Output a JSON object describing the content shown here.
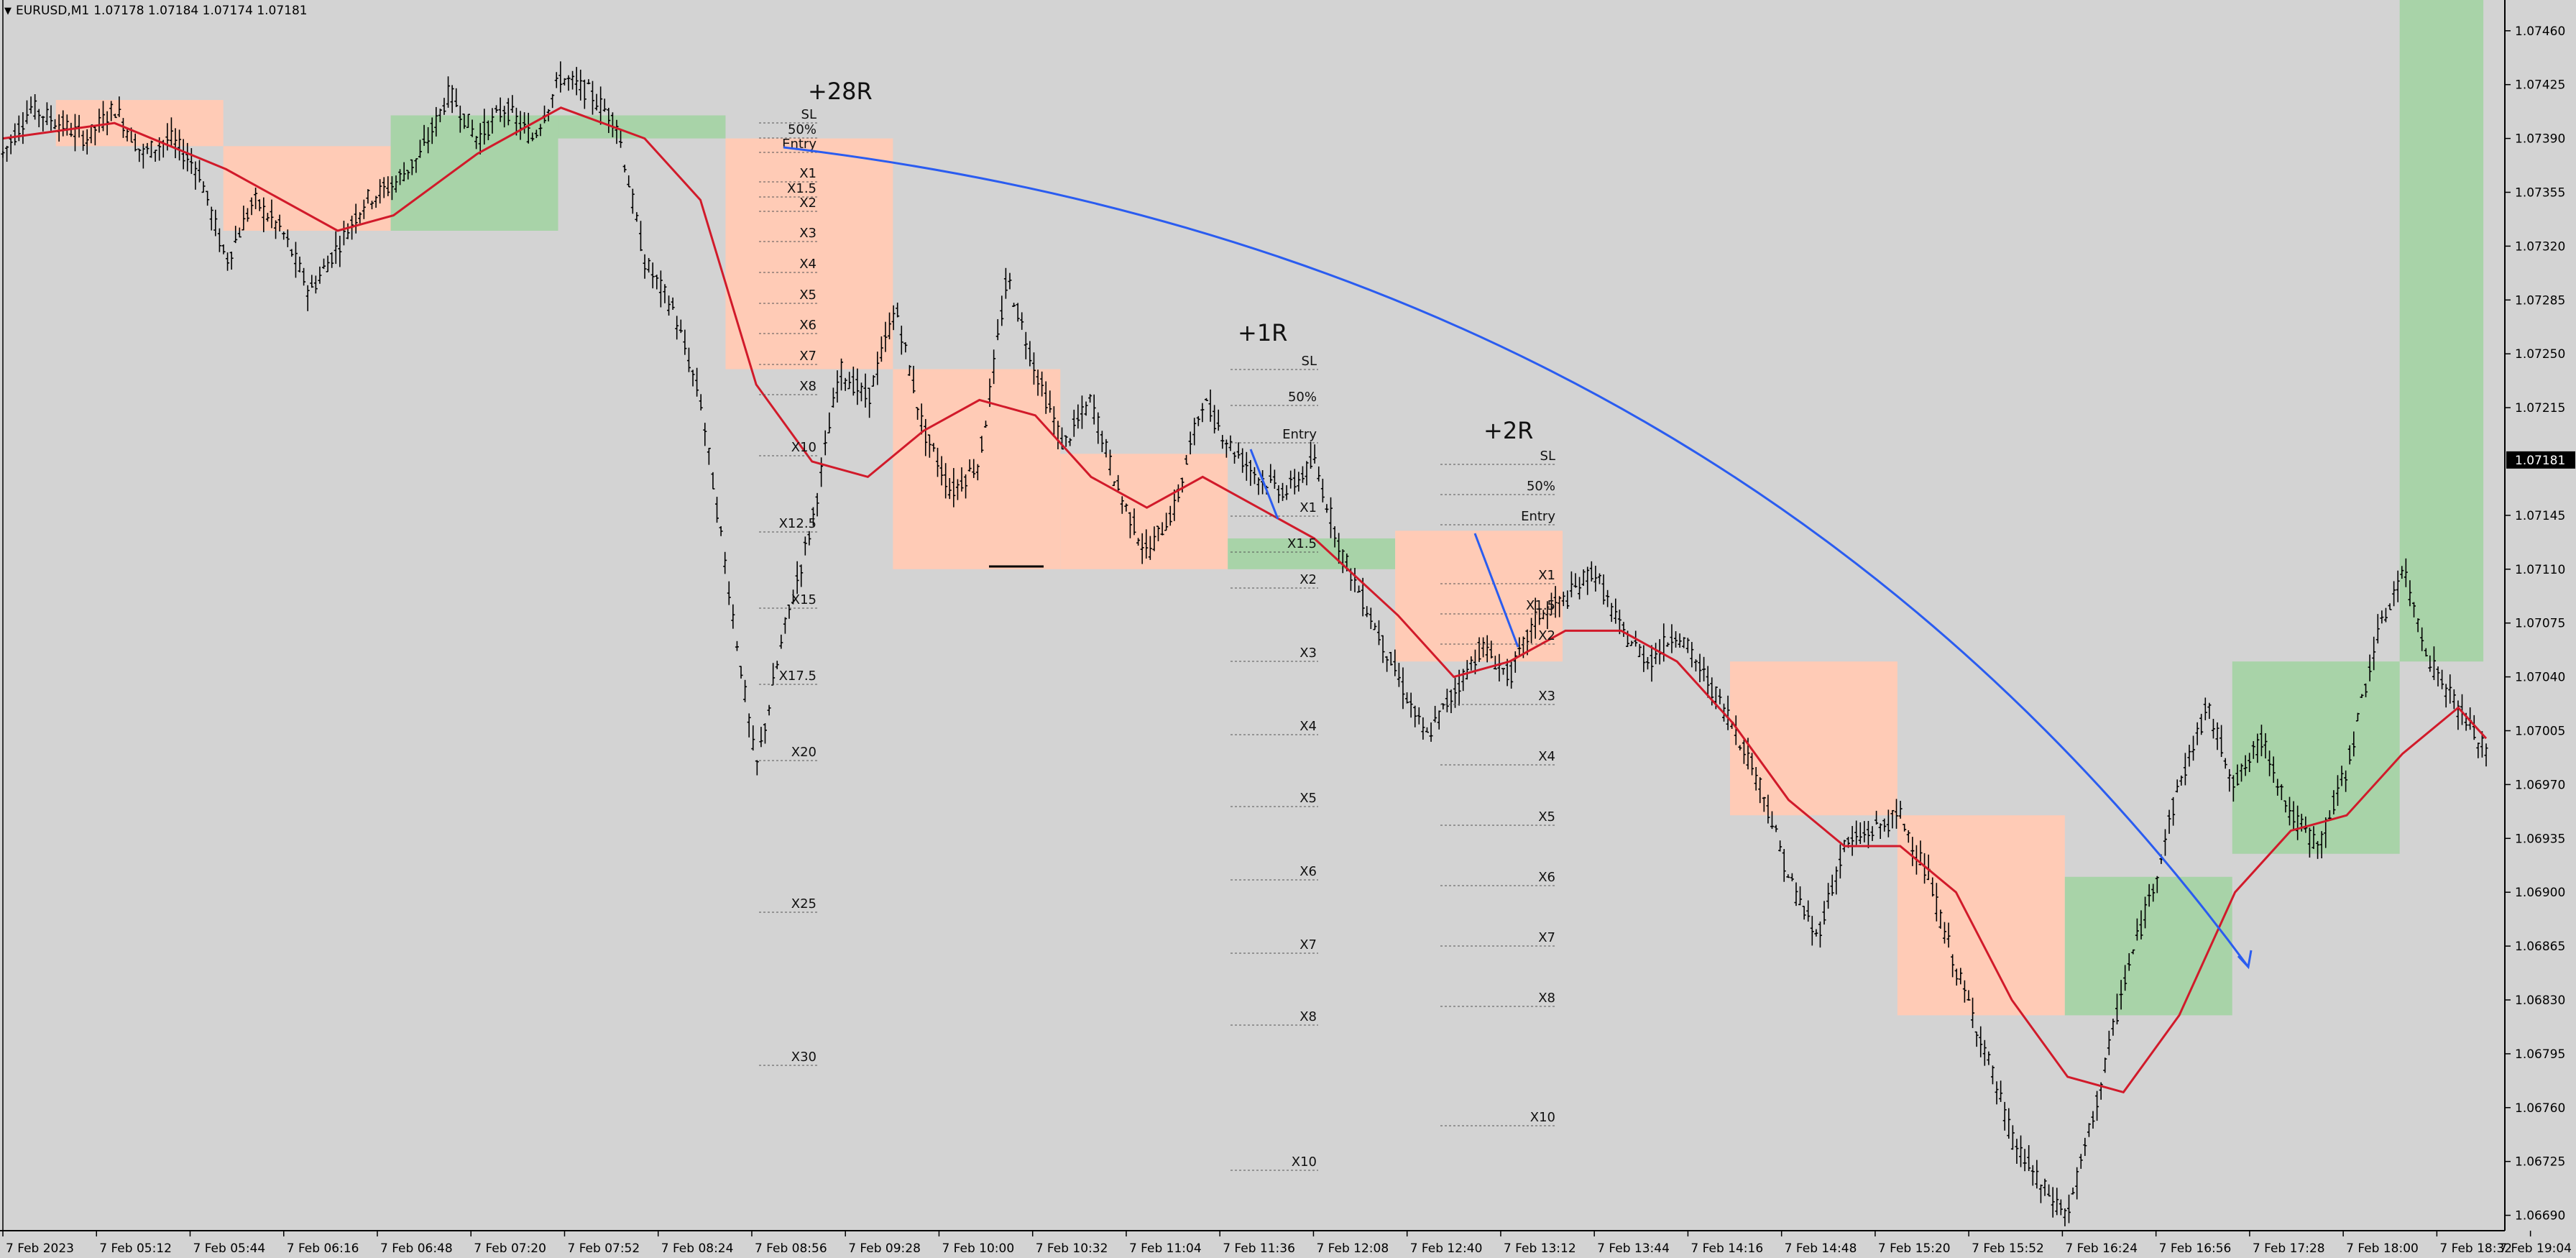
{
  "header": {
    "symbol": "EURUSD,M1",
    "ohlc": "1.07178 1.07184 1.07174 1.07181"
  },
  "chart_data": {
    "type": "candlestick",
    "ylim": [
      1.0668,
      1.0748
    ],
    "price_ticks": [
      "1.07460",
      "1.07425",
      "1.07390",
      "1.07355",
      "1.07320",
      "1.07285",
      "1.07250",
      "1.07215",
      "1.07145",
      "1.07110",
      "1.07075",
      "1.07040",
      "1.07005",
      "1.06970",
      "1.06935",
      "1.06900",
      "1.06865",
      "1.06830",
      "1.06795",
      "1.06760",
      "1.06725",
      "1.06690"
    ],
    "current_price": "1.07181",
    "time_labels": [
      "7 Feb 2023",
      "7 Feb 05:12",
      "7 Feb 05:44",
      "7 Feb 06:16",
      "7 Feb 06:48",
      "7 Feb 07:20",
      "7 Feb 07:52",
      "7 Feb 08:24",
      "7 Feb 08:56",
      "7 Feb 09:28",
      "7 Feb 10:00",
      "7 Feb 10:32",
      "7 Feb 11:04",
      "7 Feb 11:36",
      "7 Feb 12:08",
      "7 Feb 12:40",
      "7 Feb 13:12",
      "7 Feb 13:44",
      "7 Feb 14:16",
      "7 Feb 14:48",
      "7 Feb 15:20",
      "7 Feb 15:52",
      "7 Feb 16:24",
      "7 Feb 16:56",
      "7 Feb 17:28",
      "7 Feb 18:00",
      "7 Feb 18:32",
      "7 Feb 19:04"
    ],
    "price_path": [
      [
        0,
        1.0738
      ],
      [
        1,
        1.0741
      ],
      [
        2,
        1.074
      ],
      [
        3,
        1.0739
      ],
      [
        4,
        1.0741
      ],
      [
        5,
        1.0738
      ],
      [
        6,
        1.0739
      ],
      [
        7,
        1.0737
      ],
      [
        8,
        1.0731
      ],
      [
        9,
        1.0735
      ],
      [
        10,
        1.0733
      ],
      [
        11,
        1.0729
      ],
      [
        12,
        1.0732
      ],
      [
        13,
        1.0735
      ],
      [
        14,
        1.0736
      ],
      [
        15,
        1.0738
      ],
      [
        16,
        1.0742
      ],
      [
        17,
        1.0739
      ],
      [
        18,
        1.0741
      ],
      [
        19,
        1.0739
      ],
      [
        20,
        1.0743
      ],
      [
        21,
        1.0742
      ],
      [
        22,
        1.074
      ],
      [
        23,
        1.0731
      ],
      [
        24,
        1.0728
      ],
      [
        25,
        1.0722
      ],
      [
        26,
        1.071
      ],
      [
        27,
        1.0698
      ],
      [
        28,
        1.0707
      ],
      [
        29,
        1.0714
      ],
      [
        30,
        1.0724
      ],
      [
        31,
        1.0722
      ],
      [
        32,
        1.0728
      ],
      [
        33,
        1.072
      ],
      [
        34,
        1.0716
      ],
      [
        35,
        1.0718
      ],
      [
        36,
        1.073
      ],
      [
        37,
        1.0724
      ],
      [
        38,
        1.0719
      ],
      [
        39,
        1.0722
      ],
      [
        40,
        1.0716
      ],
      [
        41,
        1.0712
      ],
      [
        42,
        1.0715
      ],
      [
        43,
        1.0722
      ],
      [
        44,
        1.0719
      ],
      [
        45,
        1.0717
      ],
      [
        46,
        1.0716
      ],
      [
        47,
        1.0718
      ],
      [
        48,
        1.0712
      ],
      [
        49,
        1.0708
      ],
      [
        50,
        1.0704
      ],
      [
        51,
        1.07
      ],
      [
        52,
        1.0703
      ],
      [
        53,
        1.0706
      ],
      [
        54,
        1.0704
      ],
      [
        55,
        1.0708
      ],
      [
        56,
        1.0709
      ],
      [
        57,
        1.0711
      ],
      [
        58,
        1.0707
      ],
      [
        59,
        1.0705
      ],
      [
        60,
        1.0707
      ],
      [
        61,
        1.0704
      ],
      [
        62,
        1.0701
      ],
      [
        63,
        1.0697
      ],
      [
        64,
        1.0691
      ],
      [
        65,
        1.0687
      ],
      [
        66,
        1.0693
      ],
      [
        67,
        1.0694
      ],
      [
        68,
        1.0695
      ],
      [
        69,
        1.0691
      ],
      [
        70,
        1.0685
      ],
      [
        71,
        1.068
      ],
      [
        72,
        1.0674
      ],
      [
        73,
        1.0671
      ],
      [
        74,
        1.0669
      ],
      [
        75,
        1.0676
      ],
      [
        76,
        1.0684
      ],
      [
        77,
        1.069
      ],
      [
        78,
        1.0697
      ],
      [
        79,
        1.0702
      ],
      [
        80,
        1.0697
      ],
      [
        81,
        1.07
      ],
      [
        82,
        1.0695
      ],
      [
        83,
        1.0693
      ],
      [
        84,
        1.0698
      ],
      [
        85,
        1.0706
      ],
      [
        86,
        1.0711
      ],
      [
        87,
        1.0705
      ],
      [
        88,
        1.0702
      ],
      [
        89,
        1.0699
      ]
    ],
    "moving_average": [
      [
        0,
        1.0739
      ],
      [
        4,
        1.074
      ],
      [
        8,
        1.0737
      ],
      [
        12,
        1.0733
      ],
      [
        14,
        1.0734
      ],
      [
        17,
        1.0738
      ],
      [
        20,
        1.0741
      ],
      [
        23,
        1.0739
      ],
      [
        25,
        1.0735
      ],
      [
        27,
        1.0723
      ],
      [
        29,
        1.0718
      ],
      [
        31,
        1.0717
      ],
      [
        33,
        1.072
      ],
      [
        35,
        1.0722
      ],
      [
        37,
        1.0721
      ],
      [
        39,
        1.0717
      ],
      [
        41,
        1.0715
      ],
      [
        43,
        1.0717
      ],
      [
        45,
        1.0715
      ],
      [
        47,
        1.0713
      ],
      [
        50,
        1.0708
      ],
      [
        52,
        1.0704
      ],
      [
        54,
        1.0705
      ],
      [
        56,
        1.0707
      ],
      [
        58,
        1.0707
      ],
      [
        60,
        1.0705
      ],
      [
        62,
        1.0701
      ],
      [
        64,
        1.0696
      ],
      [
        66,
        1.0693
      ],
      [
        68,
        1.0693
      ],
      [
        70,
        1.069
      ],
      [
        72,
        1.0683
      ],
      [
        74,
        1.0678
      ],
      [
        76,
        1.0677
      ],
      [
        78,
        1.0682
      ],
      [
        80,
        1.069
      ],
      [
        82,
        1.0694
      ],
      [
        84,
        1.0695
      ],
      [
        86,
        1.0699
      ],
      [
        88,
        1.0702
      ],
      [
        89,
        1.07
      ]
    ],
    "trade_labels": [
      "+28R",
      "+1R",
      "+2R"
    ],
    "level_labels_1": [
      "SL",
      "50%",
      "Entry",
      "X1",
      "X1.5",
      "X2",
      "X3",
      "X4",
      "X5",
      "X6",
      "X7",
      "X8",
      "X10",
      "X12.5",
      "X15",
      "X17.5",
      "X20",
      "X25",
      "X30"
    ],
    "level_labels_2": [
      "SL",
      "50%",
      "Entry",
      "X1",
      "X1.5",
      "X2",
      "X3",
      "X4",
      "X5",
      "X6",
      "X7",
      "X8",
      "X10"
    ],
    "level_labels_3": [
      "SL",
      "50%",
      "Entry",
      "X1",
      "X1.5",
      "X2",
      "X3",
      "X4",
      "X5",
      "X6",
      "X7",
      "X8",
      "X10"
    ],
    "colors": {
      "background": "#d3d3d3",
      "bear_box": "#ffcbb6",
      "bull_box": "#a8d3a8",
      "ma": "#d11a2a",
      "arc": "#2a5cf0",
      "candle": "#000000"
    }
  }
}
